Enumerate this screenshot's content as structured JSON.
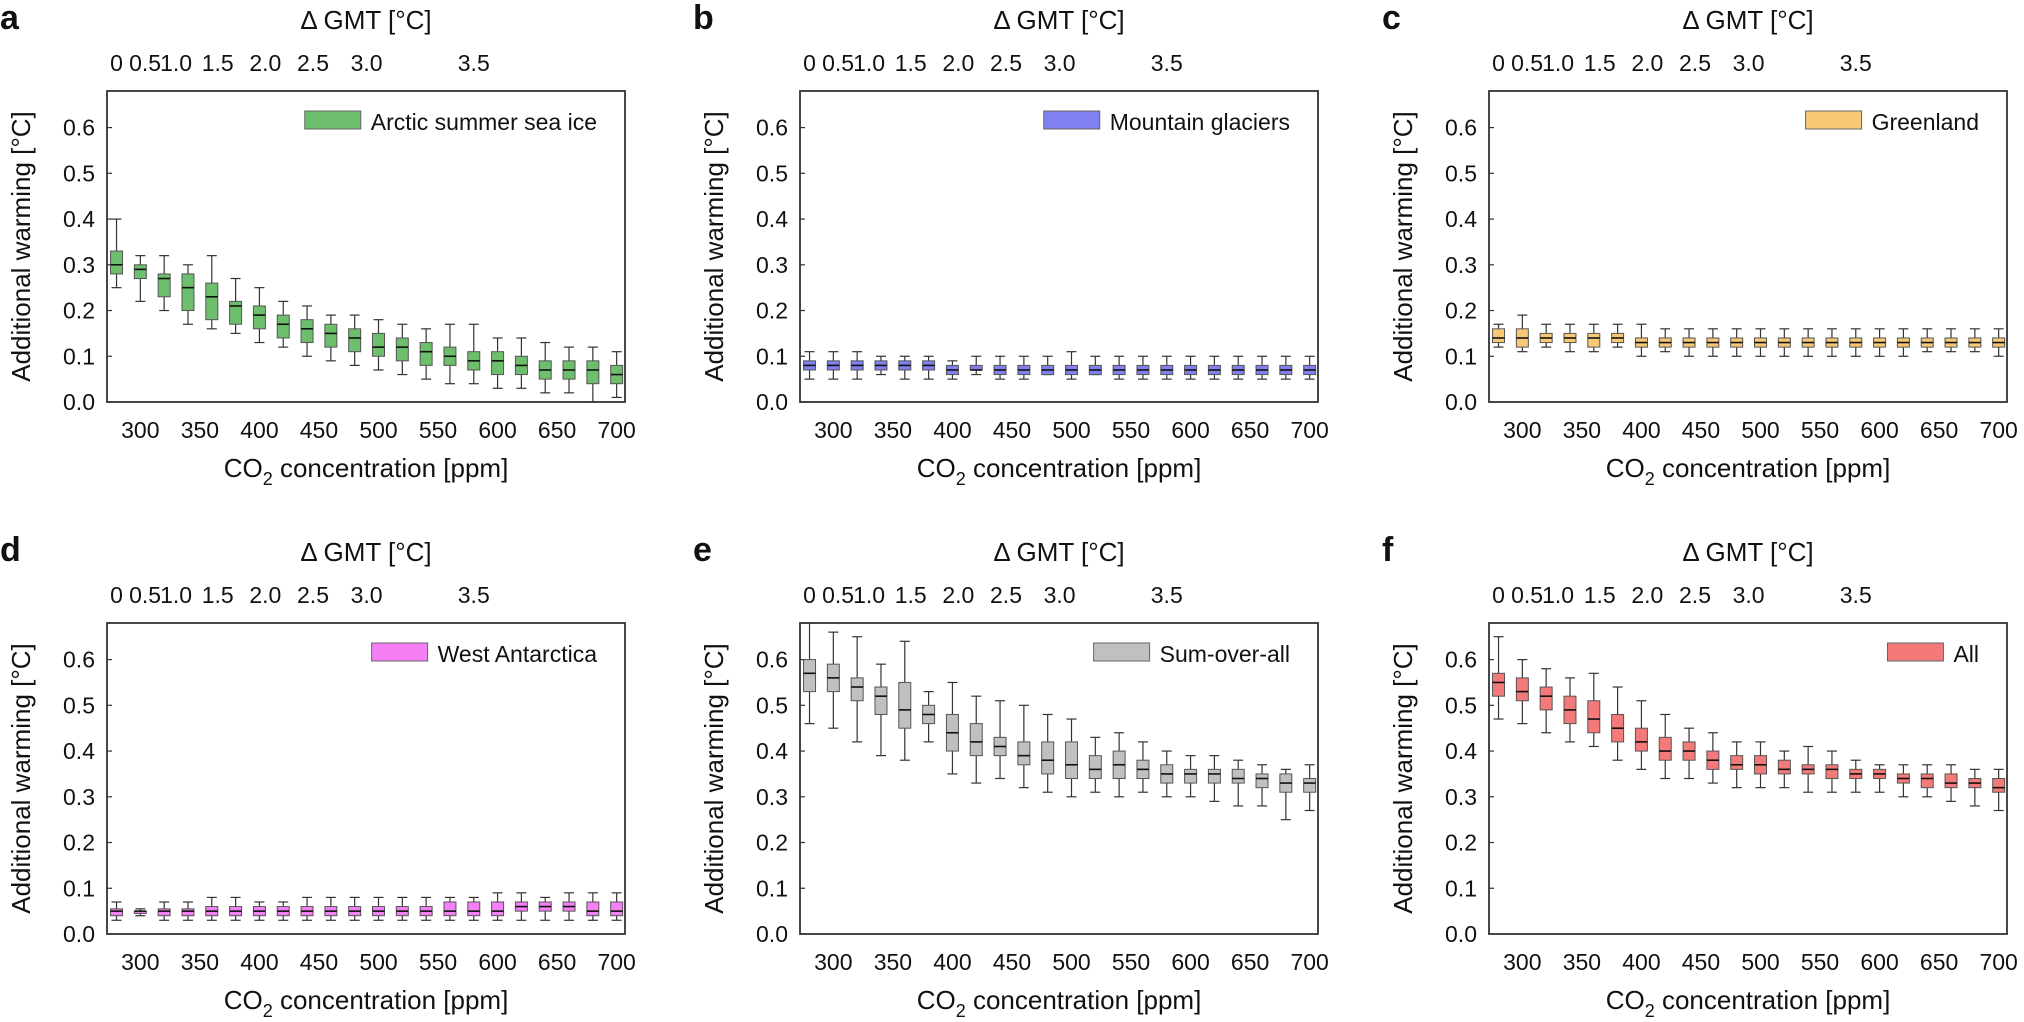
{
  "chart_data": [
    {
      "panel": "a",
      "type": "box",
      "legend": "Arctic summer sea ice",
      "legend_placement": "top-right",
      "color": "#6dbe6d",
      "xlabel_main": "CO",
      "xlabel_sub": "2",
      "xlabel_rest": " concentration [ppm]",
      "ylabel": "Additional warming [°C]",
      "top_label": "Δ GMT [°C]",
      "xlim": [
        272,
        707
      ],
      "ylim": [
        0,
        0.68
      ],
      "x_ticks": [
        "300",
        "350",
        "400",
        "450",
        "500",
        "550",
        "600",
        "650",
        "700"
      ],
      "y_ticks": [
        "0.0",
        "0.1",
        "0.2",
        "0.3",
        "0.4",
        "0.5",
        "0.6"
      ],
      "top_ticks": [
        "0",
        "0.5",
        "1.0",
        "1.5",
        "2.0",
        "2.5",
        "3.0",
        "3.5"
      ],
      "top_tick_co2": [
        280,
        304,
        330,
        365,
        405,
        445,
        490,
        580
      ],
      "x": [
        280,
        300,
        320,
        340,
        360,
        380,
        400,
        420,
        440,
        460,
        480,
        500,
        520,
        540,
        560,
        580,
        600,
        620,
        640,
        660,
        680,
        700
      ],
      "whisker_low": [
        0.25,
        0.22,
        0.2,
        0.17,
        0.16,
        0.15,
        0.13,
        0.12,
        0.1,
        0.09,
        0.08,
        0.07,
        0.06,
        0.05,
        0.04,
        0.04,
        0.03,
        0.03,
        0.02,
        0.02,
        0.0,
        0.01
      ],
      "q1": [
        0.28,
        0.27,
        0.23,
        0.2,
        0.18,
        0.17,
        0.16,
        0.14,
        0.13,
        0.12,
        0.11,
        0.1,
        0.09,
        0.08,
        0.08,
        0.07,
        0.06,
        0.06,
        0.05,
        0.05,
        0.04,
        0.04
      ],
      "median": [
        0.3,
        0.29,
        0.27,
        0.25,
        0.23,
        0.21,
        0.19,
        0.17,
        0.16,
        0.15,
        0.14,
        0.12,
        0.12,
        0.11,
        0.1,
        0.09,
        0.09,
        0.08,
        0.07,
        0.07,
        0.07,
        0.06
      ],
      "q3": [
        0.33,
        0.3,
        0.28,
        0.28,
        0.26,
        0.22,
        0.21,
        0.19,
        0.18,
        0.17,
        0.16,
        0.15,
        0.14,
        0.13,
        0.12,
        0.11,
        0.11,
        0.1,
        0.09,
        0.09,
        0.09,
        0.08
      ],
      "whisker_high": [
        0.4,
        0.32,
        0.32,
        0.3,
        0.32,
        0.27,
        0.25,
        0.22,
        0.21,
        0.19,
        0.19,
        0.18,
        0.17,
        0.16,
        0.17,
        0.17,
        0.14,
        0.14,
        0.13,
        0.12,
        0.12,
        0.11
      ]
    },
    {
      "panel": "b",
      "type": "box",
      "legend": "Mountain glaciers",
      "legend_placement": "top-right",
      "color": "#8080f0",
      "xlabel_main": "CO",
      "xlabel_sub": "2",
      "xlabel_rest": " concentration [ppm]",
      "ylabel": "Additional warming [°C]",
      "top_label": "Δ GMT [°C]",
      "xlim": [
        272,
        707
      ],
      "ylim": [
        0,
        0.68
      ],
      "x_ticks": [
        "300",
        "350",
        "400",
        "450",
        "500",
        "550",
        "600",
        "650",
        "700"
      ],
      "y_ticks": [
        "0.0",
        "0.1",
        "0.2",
        "0.3",
        "0.4",
        "0.5",
        "0.6"
      ],
      "top_ticks": [
        "0",
        "0.5",
        "1.0",
        "1.5",
        "2.0",
        "2.5",
        "3.0",
        "3.5"
      ],
      "top_tick_co2": [
        280,
        304,
        330,
        365,
        405,
        445,
        490,
        580
      ],
      "x": [
        280,
        300,
        320,
        340,
        360,
        380,
        400,
        420,
        440,
        460,
        480,
        500,
        520,
        540,
        560,
        580,
        600,
        620,
        640,
        660,
        680,
        700
      ],
      "whisker_low": [
        0.05,
        0.05,
        0.05,
        0.06,
        0.05,
        0.05,
        0.05,
        0.06,
        0.05,
        0.05,
        0.06,
        0.05,
        0.06,
        0.05,
        0.05,
        0.05,
        0.05,
        0.05,
        0.05,
        0.05,
        0.05,
        0.05
      ],
      "q1": [
        0.07,
        0.07,
        0.07,
        0.07,
        0.07,
        0.07,
        0.06,
        0.07,
        0.06,
        0.06,
        0.06,
        0.06,
        0.06,
        0.06,
        0.06,
        0.06,
        0.06,
        0.06,
        0.06,
        0.06,
        0.06,
        0.06
      ],
      "median": [
        0.08,
        0.08,
        0.08,
        0.08,
        0.08,
        0.08,
        0.07,
        0.07,
        0.07,
        0.07,
        0.07,
        0.07,
        0.07,
        0.07,
        0.07,
        0.07,
        0.07,
        0.07,
        0.07,
        0.07,
        0.07,
        0.07
      ],
      "q3": [
        0.09,
        0.09,
        0.09,
        0.09,
        0.09,
        0.09,
        0.08,
        0.08,
        0.08,
        0.08,
        0.08,
        0.08,
        0.08,
        0.08,
        0.08,
        0.08,
        0.08,
        0.08,
        0.08,
        0.08,
        0.08,
        0.08
      ],
      "whisker_high": [
        0.11,
        0.11,
        0.11,
        0.1,
        0.1,
        0.1,
        0.09,
        0.1,
        0.1,
        0.1,
        0.1,
        0.11,
        0.1,
        0.1,
        0.1,
        0.1,
        0.1,
        0.1,
        0.1,
        0.1,
        0.1,
        0.1
      ]
    },
    {
      "panel": "c",
      "type": "box",
      "legend": "Greenland",
      "legend_placement": "top-right",
      "color": "#f7c977",
      "xlabel_main": "CO",
      "xlabel_sub": "2",
      "xlabel_rest": " concentration [ppm]",
      "ylabel": "Additional warming [°C]",
      "top_label": "Δ GMT [°C]",
      "xlim": [
        272,
        707
      ],
      "ylim": [
        0,
        0.68
      ],
      "x_ticks": [
        "300",
        "350",
        "400",
        "450",
        "500",
        "550",
        "600",
        "650",
        "700"
      ],
      "y_ticks": [
        "0.0",
        "0.1",
        "0.2",
        "0.3",
        "0.4",
        "0.5",
        "0.6"
      ],
      "top_ticks": [
        "0",
        "0.5",
        "1.0",
        "1.5",
        "2.0",
        "2.5",
        "3.0",
        "3.5"
      ],
      "top_tick_co2": [
        280,
        304,
        330,
        365,
        405,
        445,
        490,
        580
      ],
      "x": [
        280,
        300,
        320,
        340,
        360,
        380,
        400,
        420,
        440,
        460,
        480,
        500,
        520,
        540,
        560,
        580,
        600,
        620,
        640,
        660,
        680,
        700
      ],
      "whisker_low": [
        0.12,
        0.11,
        0.12,
        0.11,
        0.11,
        0.12,
        0.1,
        0.11,
        0.1,
        0.1,
        0.1,
        0.1,
        0.1,
        0.1,
        0.1,
        0.1,
        0.1,
        0.1,
        0.11,
        0.11,
        0.11,
        0.1
      ],
      "q1": [
        0.13,
        0.12,
        0.13,
        0.13,
        0.12,
        0.13,
        0.12,
        0.12,
        0.12,
        0.12,
        0.12,
        0.12,
        0.12,
        0.12,
        0.12,
        0.12,
        0.12,
        0.12,
        0.12,
        0.12,
        0.12,
        0.12
      ],
      "median": [
        0.14,
        0.14,
        0.14,
        0.14,
        0.14,
        0.14,
        0.13,
        0.13,
        0.13,
        0.13,
        0.13,
        0.13,
        0.13,
        0.13,
        0.13,
        0.13,
        0.13,
        0.13,
        0.13,
        0.13,
        0.13,
        0.13
      ],
      "q3": [
        0.16,
        0.16,
        0.15,
        0.15,
        0.15,
        0.15,
        0.14,
        0.14,
        0.14,
        0.14,
        0.14,
        0.14,
        0.14,
        0.14,
        0.14,
        0.14,
        0.14,
        0.14,
        0.14,
        0.14,
        0.14,
        0.14
      ],
      "whisker_high": [
        0.17,
        0.19,
        0.17,
        0.17,
        0.17,
        0.17,
        0.17,
        0.16,
        0.16,
        0.16,
        0.16,
        0.16,
        0.16,
        0.16,
        0.16,
        0.16,
        0.16,
        0.16,
        0.16,
        0.16,
        0.16,
        0.16
      ]
    },
    {
      "panel": "d",
      "type": "box",
      "legend": "West Antarctica",
      "legend_placement": "top-right",
      "color": "#f580f5",
      "xlabel_main": "CO",
      "xlabel_sub": "2",
      "xlabel_rest": " concentration [ppm]",
      "ylabel": "Additional warming [°C]",
      "top_label": "Δ GMT [°C]",
      "xlim": [
        272,
        707
      ],
      "ylim": [
        0,
        0.68
      ],
      "x_ticks": [
        "300",
        "350",
        "400",
        "450",
        "500",
        "550",
        "600",
        "650",
        "700"
      ],
      "y_ticks": [
        "0.0",
        "0.1",
        "0.2",
        "0.3",
        "0.4",
        "0.5",
        "0.6"
      ],
      "top_ticks": [
        "0",
        "0.5",
        "1.0",
        "1.5",
        "2.0",
        "2.5",
        "3.0",
        "3.5"
      ],
      "top_tick_co2": [
        280,
        304,
        330,
        365,
        405,
        445,
        490,
        580
      ],
      "x": [
        280,
        300,
        320,
        340,
        360,
        380,
        400,
        420,
        440,
        460,
        480,
        500,
        520,
        540,
        560,
        580,
        600,
        620,
        640,
        660,
        680,
        700
      ],
      "whisker_low": [
        0.03,
        0.04,
        0.03,
        0.03,
        0.03,
        0.03,
        0.03,
        0.03,
        0.03,
        0.03,
        0.03,
        0.03,
        0.03,
        0.03,
        0.03,
        0.03,
        0.03,
        0.03,
        0.03,
        0.03,
        0.03,
        0.03
      ],
      "q1": [
        0.04,
        0.045,
        0.04,
        0.04,
        0.04,
        0.04,
        0.04,
        0.04,
        0.04,
        0.04,
        0.04,
        0.04,
        0.04,
        0.04,
        0.04,
        0.04,
        0.04,
        0.05,
        0.05,
        0.05,
        0.04,
        0.04
      ],
      "median": [
        0.05,
        0.05,
        0.05,
        0.05,
        0.05,
        0.05,
        0.05,
        0.05,
        0.05,
        0.05,
        0.05,
        0.05,
        0.05,
        0.05,
        0.05,
        0.05,
        0.05,
        0.06,
        0.06,
        0.06,
        0.05,
        0.05
      ],
      "q3": [
        0.055,
        0.05,
        0.055,
        0.055,
        0.06,
        0.06,
        0.06,
        0.06,
        0.06,
        0.06,
        0.06,
        0.06,
        0.06,
        0.06,
        0.07,
        0.07,
        0.07,
        0.07,
        0.07,
        0.07,
        0.07,
        0.07
      ],
      "whisker_high": [
        0.07,
        0.055,
        0.07,
        0.07,
        0.08,
        0.08,
        0.07,
        0.07,
        0.08,
        0.08,
        0.08,
        0.08,
        0.08,
        0.08,
        0.08,
        0.08,
        0.09,
        0.09,
        0.08,
        0.09,
        0.09,
        0.09
      ]
    },
    {
      "panel": "e",
      "type": "box",
      "legend": "Sum-over-all",
      "legend_placement": "top-right",
      "color": "#c0c0c0",
      "xlabel_main": "CO",
      "xlabel_sub": "2",
      "xlabel_rest": " concentration [ppm]",
      "ylabel": "Additional warming [°C]",
      "top_label": "Δ GMT [°C]",
      "xlim": [
        272,
        707
      ],
      "ylim": [
        0,
        0.68
      ],
      "x_ticks": [
        "300",
        "350",
        "400",
        "450",
        "500",
        "550",
        "600",
        "650",
        "700"
      ],
      "y_ticks": [
        "0.0",
        "0.1",
        "0.2",
        "0.3",
        "0.4",
        "0.5",
        "0.6"
      ],
      "top_ticks": [
        "0",
        "0.5",
        "1.0",
        "1.5",
        "2.0",
        "2.5",
        "3.0",
        "3.5"
      ],
      "top_tick_co2": [
        280,
        304,
        330,
        365,
        405,
        445,
        490,
        580
      ],
      "x": [
        280,
        300,
        320,
        340,
        360,
        380,
        400,
        420,
        440,
        460,
        480,
        500,
        520,
        540,
        560,
        580,
        600,
        620,
        640,
        660,
        680,
        700
      ],
      "whisker_low": [
        0.46,
        0.45,
        0.42,
        0.39,
        0.38,
        0.42,
        0.35,
        0.33,
        0.34,
        0.32,
        0.31,
        0.3,
        0.31,
        0.3,
        0.31,
        0.3,
        0.3,
        0.29,
        0.28,
        0.28,
        0.25,
        0.27
      ],
      "q1": [
        0.53,
        0.53,
        0.51,
        0.48,
        0.45,
        0.46,
        0.4,
        0.39,
        0.39,
        0.37,
        0.35,
        0.34,
        0.34,
        0.34,
        0.34,
        0.33,
        0.33,
        0.33,
        0.33,
        0.32,
        0.31,
        0.31
      ],
      "median": [
        0.57,
        0.56,
        0.54,
        0.52,
        0.49,
        0.48,
        0.44,
        0.42,
        0.41,
        0.39,
        0.38,
        0.37,
        0.36,
        0.37,
        0.36,
        0.35,
        0.35,
        0.35,
        0.34,
        0.34,
        0.33,
        0.33
      ],
      "q3": [
        0.6,
        0.59,
        0.56,
        0.54,
        0.55,
        0.5,
        0.48,
        0.46,
        0.43,
        0.42,
        0.42,
        0.42,
        0.39,
        0.4,
        0.38,
        0.37,
        0.36,
        0.36,
        0.36,
        0.35,
        0.35,
        0.34
      ],
      "whisker_high": [
        0.68,
        0.66,
        0.65,
        0.59,
        0.64,
        0.53,
        0.55,
        0.52,
        0.51,
        0.5,
        0.48,
        0.47,
        0.43,
        0.44,
        0.42,
        0.4,
        0.39,
        0.39,
        0.38,
        0.37,
        0.36,
        0.37
      ]
    },
    {
      "panel": "f",
      "type": "box",
      "legend": "All",
      "legend_placement": "top-right",
      "color": "#f47a7a",
      "xlabel_main": "CO",
      "xlabel_sub": "2",
      "xlabel_rest": " concentration [ppm]",
      "ylabel": "Additional warming [°C]",
      "top_label": "Δ GMT [°C]",
      "xlim": [
        272,
        707
      ],
      "ylim": [
        0,
        0.68
      ],
      "x_ticks": [
        "300",
        "350",
        "400",
        "450",
        "500",
        "550",
        "600",
        "650",
        "700"
      ],
      "y_ticks": [
        "0.0",
        "0.1",
        "0.2",
        "0.3",
        "0.4",
        "0.5",
        "0.6"
      ],
      "top_ticks": [
        "0",
        "0.5",
        "1.0",
        "1.5",
        "2.0",
        "2.5",
        "3.0",
        "3.5"
      ],
      "top_tick_co2": [
        280,
        304,
        330,
        365,
        405,
        445,
        490,
        580
      ],
      "x": [
        280,
        300,
        320,
        340,
        360,
        380,
        400,
        420,
        440,
        460,
        480,
        500,
        520,
        540,
        560,
        580,
        600,
        620,
        640,
        660,
        680,
        700
      ],
      "whisker_low": [
        0.47,
        0.46,
        0.44,
        0.42,
        0.41,
        0.38,
        0.36,
        0.34,
        0.34,
        0.33,
        0.32,
        0.32,
        0.32,
        0.31,
        0.31,
        0.31,
        0.31,
        0.3,
        0.3,
        0.29,
        0.28,
        0.27
      ],
      "q1": [
        0.52,
        0.51,
        0.49,
        0.46,
        0.44,
        0.42,
        0.4,
        0.38,
        0.38,
        0.36,
        0.36,
        0.35,
        0.35,
        0.35,
        0.34,
        0.34,
        0.34,
        0.33,
        0.32,
        0.32,
        0.32,
        0.31
      ],
      "median": [
        0.55,
        0.53,
        0.52,
        0.49,
        0.47,
        0.45,
        0.42,
        0.4,
        0.4,
        0.38,
        0.37,
        0.37,
        0.36,
        0.36,
        0.36,
        0.35,
        0.35,
        0.34,
        0.34,
        0.33,
        0.33,
        0.32
      ],
      "q3": [
        0.57,
        0.56,
        0.54,
        0.52,
        0.51,
        0.48,
        0.45,
        0.43,
        0.42,
        0.4,
        0.39,
        0.39,
        0.38,
        0.37,
        0.37,
        0.36,
        0.36,
        0.35,
        0.35,
        0.35,
        0.34,
        0.34
      ],
      "whisker_high": [
        0.65,
        0.6,
        0.58,
        0.56,
        0.57,
        0.54,
        0.51,
        0.48,
        0.45,
        0.44,
        0.42,
        0.42,
        0.4,
        0.41,
        0.4,
        0.38,
        0.37,
        0.37,
        0.37,
        0.37,
        0.36,
        0.36
      ]
    }
  ]
}
